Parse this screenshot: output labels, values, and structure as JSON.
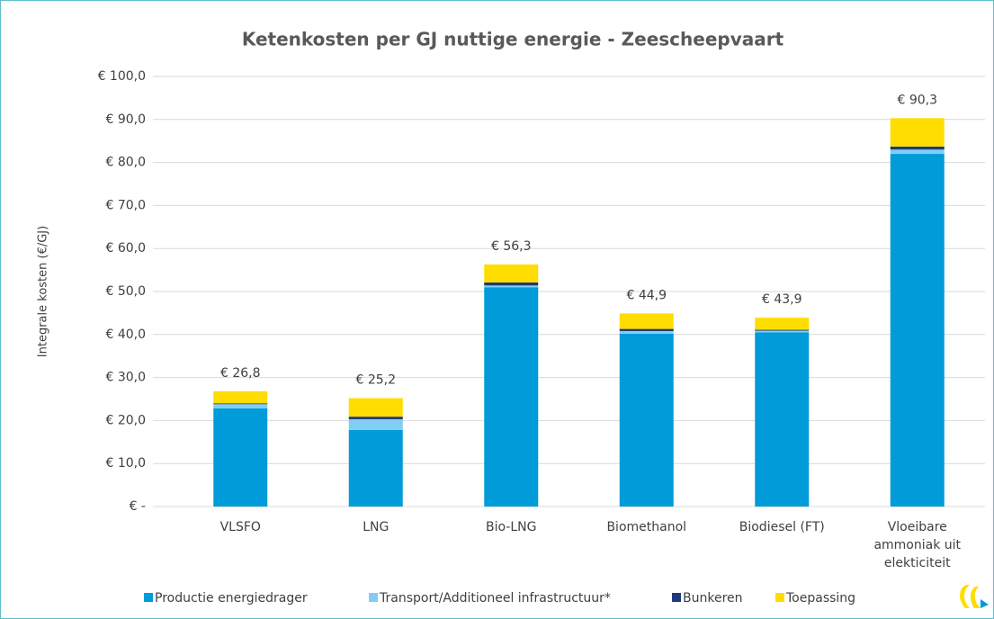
{
  "chart_data": {
    "type": "stacked_bar",
    "title": "Ketenkosten per GJ nuttige energie - Zeescheepvaart",
    "y_label": "Integrale kosten (€/GJ)",
    "categories": [
      "VLSFO",
      "LNG",
      "Bio-LNG",
      "Biomethanol",
      "Biodiesel (FT)",
      "Vloeibare ammoniak uit elekticiteit"
    ],
    "series": [
      {
        "name": "Productie energiedrager",
        "color": "#009bd9",
        "values": [
          22.8,
          17.8,
          51.0,
          40.2,
          40.5,
          82.0
        ]
      },
      {
        "name": "Transport/Additioneel infrastructuur*",
        "color": "#80cef3",
        "values": [
          1.0,
          2.5,
          0.4,
          0.6,
          0.4,
          1.0
        ]
      },
      {
        "name": "Bunkeren",
        "color": "#1f3a7a",
        "values": [
          0.2,
          0.6,
          0.7,
          0.5,
          0.2,
          0.7
        ]
      },
      {
        "name": "Toepassing",
        "color": "#ffdd00",
        "values": [
          2.8,
          4.3,
          4.2,
          3.6,
          2.8,
          6.6
        ]
      }
    ],
    "totals": [
      26.8,
      25.2,
      56.3,
      44.9,
      43.9,
      90.3
    ],
    "total_labels": [
      "€ 26,8",
      "€ 25,2",
      "€ 56,3",
      "€ 44,9",
      "€ 43,9",
      "€ 90,3"
    ],
    "ylim": [
      0,
      100
    ],
    "yticks": [
      {
        "value": 0,
        "label": "€ -"
      },
      {
        "value": 10,
        "label": "€ 10,0"
      },
      {
        "value": 20,
        "label": "€ 20,0"
      },
      {
        "value": 30,
        "label": "€ 30,0"
      },
      {
        "value": 40,
        "label": "€ 40,0"
      },
      {
        "value": 50,
        "label": "€ 50,0"
      },
      {
        "value": 60,
        "label": "€ 60,0"
      },
      {
        "value": 70,
        "label": "€ 70,0"
      },
      {
        "value": 80,
        "label": "€ 80,0"
      },
      {
        "value": 90,
        "label": "€ 90,0"
      },
      {
        "value": 100,
        "label": "€ 100,0"
      }
    ],
    "grid": true,
    "legend": "bottom"
  }
}
